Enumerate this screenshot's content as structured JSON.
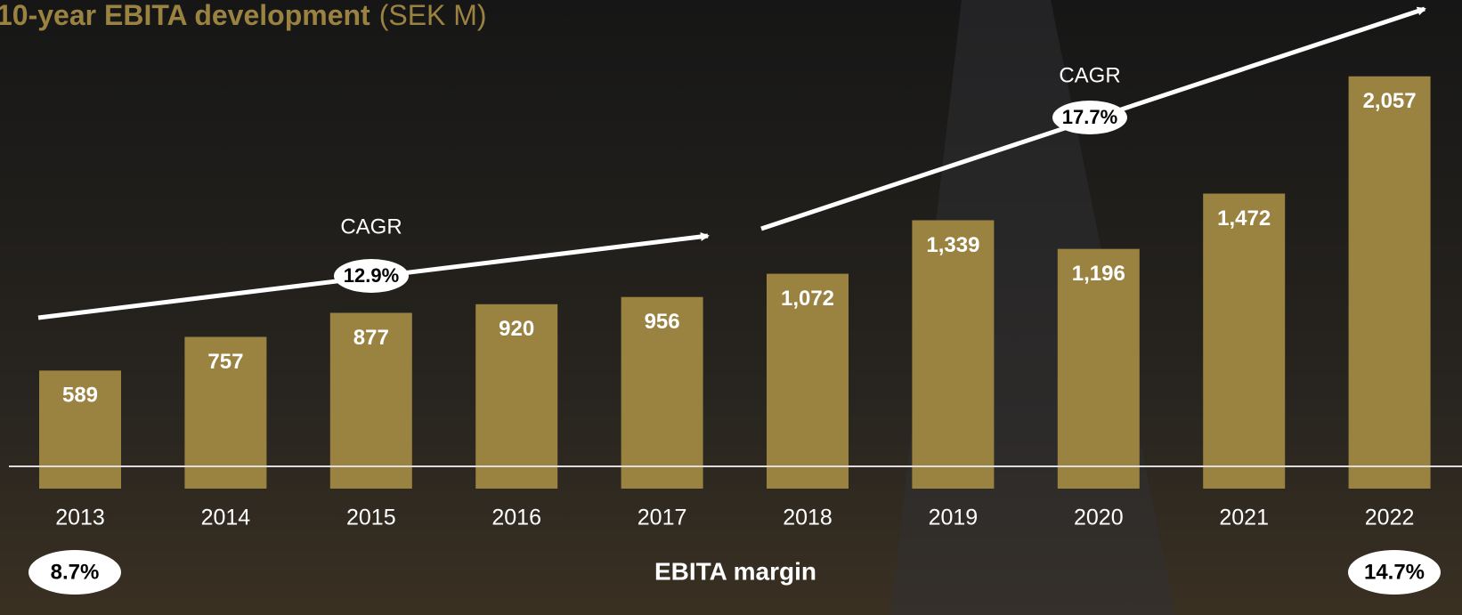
{
  "chart_data": {
    "type": "bar",
    "title": "10-year EBITA development",
    "subtitle": "(SEK M)",
    "categories": [
      "2013",
      "2014",
      "2015",
      "2016",
      "2017",
      "2018",
      "2019",
      "2020",
      "2021",
      "2022"
    ],
    "values": [
      589,
      757,
      877,
      920,
      956,
      1072,
      1339,
      1196,
      1472,
      2057
    ],
    "value_labels": [
      "589",
      "757",
      "877",
      "920",
      "956",
      "1,072",
      "1,339",
      "1,196",
      "1,472",
      "2,057"
    ],
    "color": "#9a8241",
    "annotations": {
      "cagr_1": {
        "label": "CAGR",
        "value": "12.9%"
      },
      "cagr_2": {
        "label": "CAGR",
        "value": "17.7%"
      },
      "margin": {
        "label": "EBITA margin",
        "start": "8.7%",
        "end": "14.7%"
      }
    }
  }
}
